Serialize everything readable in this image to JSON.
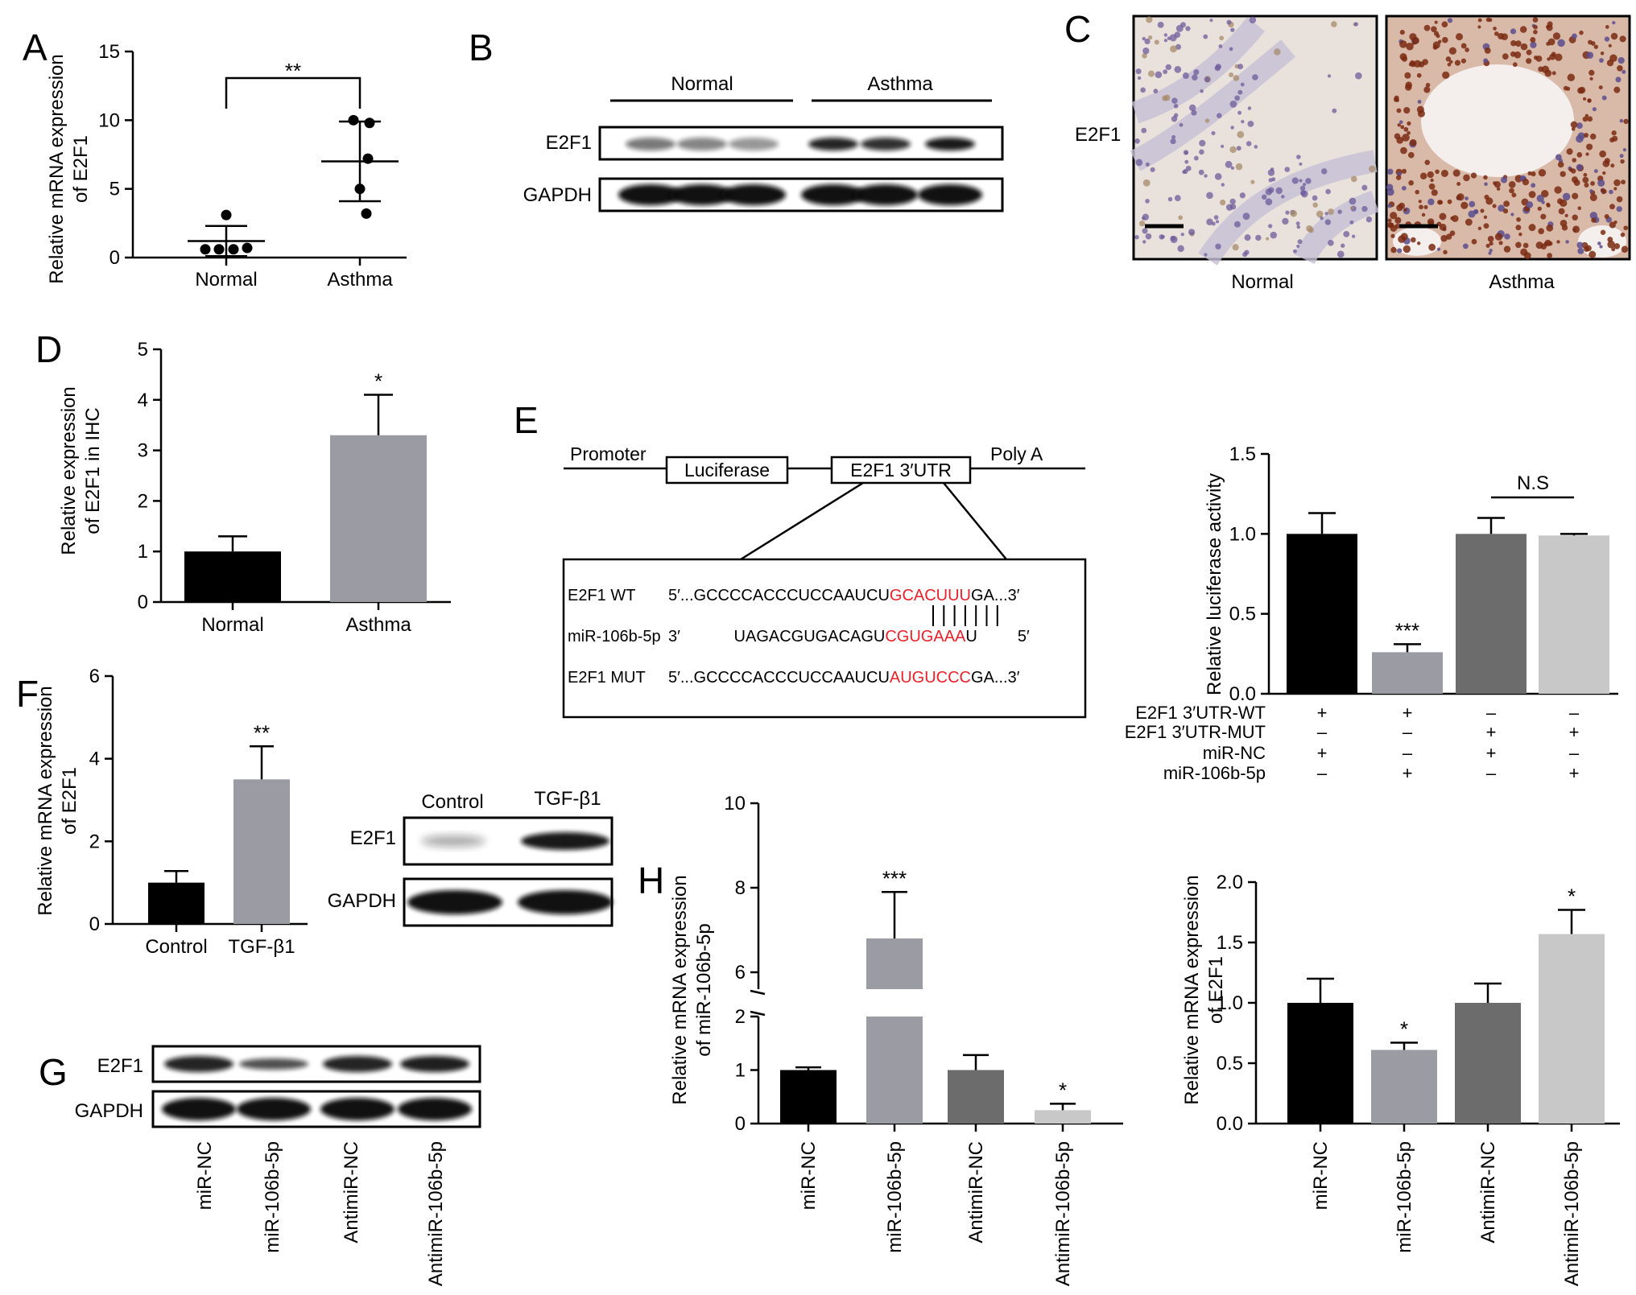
{
  "panels": {
    "A": "A",
    "B": "B",
    "C": "C",
    "D": "D",
    "E": "E",
    "F": "F",
    "G": "G",
    "H": "H"
  },
  "colors": {
    "black_bar": "#000000",
    "gray_bar": "#9a9ba3",
    "darkgray_bar": "#6c6c6c",
    "lightgray_bar": "#c8c8c8",
    "red_seq": "#e8212a"
  },
  "chart_data": [
    {
      "id": "A",
      "type": "scatter",
      "ylabel": "Relative mRNA expression\nof E2F1",
      "categories": [
        "Normal",
        "Asthma"
      ],
      "ylim": [
        0,
        15
      ],
      "yticks": [
        0,
        5,
        10,
        15
      ],
      "points": [
        {
          "group": "Normal",
          "values": [
            0.6,
            0.6,
            0.6,
            0.7,
            3.1
          ]
        },
        {
          "group": "Asthma",
          "values": [
            10.0,
            9.8,
            7.2,
            5.0,
            3.2
          ]
        }
      ],
      "mean": [
        1.2,
        7.0
      ],
      "sd": [
        1.1,
        2.9
      ],
      "annotation": "**"
    },
    {
      "id": "D",
      "type": "bar",
      "ylabel": "Relative expression\nof E2F1 in IHC",
      "categories": [
        "Normal",
        "Asthma"
      ],
      "values": [
        1.0,
        3.3
      ],
      "errors": [
        0.3,
        0.8
      ],
      "ylim": [
        0,
        5
      ],
      "yticks": [
        0,
        1,
        2,
        3,
        4,
        5
      ],
      "annotations": [
        "",
        "*"
      ]
    },
    {
      "id": "E",
      "type": "bar",
      "ylabel": "Relative luciferase activity",
      "values": [
        1.0,
        0.26,
        1.0,
        0.99
      ],
      "errors": [
        0.13,
        0.05,
        0.1,
        0.01
      ],
      "ylim": [
        0,
        1.5
      ],
      "yticks": [
        "0.0",
        "0.5",
        "1.0",
        "1.5"
      ],
      "annotations": [
        "",
        "***",
        "",
        ""
      ],
      "bracket_label": "N.S",
      "condition_rows": [
        {
          "label": "E2F1 3′UTR-WT",
          "marks": [
            "+",
            "+",
            "–",
            "–"
          ]
        },
        {
          "label": "E2F1 3′UTR-MUT",
          "marks": [
            "–",
            "–",
            "+",
            "+"
          ]
        },
        {
          "label": "miR-NC",
          "marks": [
            "+",
            "–",
            "+",
            "–"
          ]
        },
        {
          "label": "miR-106b-5p",
          "marks": [
            "–",
            "+",
            "–",
            "+"
          ]
        }
      ]
    },
    {
      "id": "F",
      "type": "bar",
      "ylabel": "Relative mRNA expression\nof E2F1",
      "categories": [
        "Control",
        "TGF-β1"
      ],
      "values": [
        1.0,
        3.5
      ],
      "errors": [
        0.28,
        0.8
      ],
      "ylim": [
        0,
        6
      ],
      "yticks": [
        0,
        2,
        4,
        6
      ],
      "annotations": [
        "",
        "**"
      ]
    },
    {
      "id": "H1",
      "type": "bar",
      "ylabel": "Relative mRNA expression\nof miR-106b-5p",
      "categories": [
        "miR-NC",
        "miR-106b-5p",
        "AntimiR-NC",
        "AntimiR-106b-5p"
      ],
      "values": [
        1.0,
        6.8,
        1.0,
        0.25
      ],
      "errors": [
        0.05,
        1.1,
        0.28,
        0.12
      ],
      "yticks_lower": [
        0,
        1,
        2
      ],
      "yticks_upper": [
        6,
        8,
        10
      ],
      "axis_break": [
        2,
        5
      ],
      "annotations": [
        "",
        "***",
        "",
        "*"
      ]
    },
    {
      "id": "H2",
      "type": "bar",
      "ylabel": "Relative mRNA expression\nof E2F1",
      "categories": [
        "miR-NC",
        "miR-106b-5p",
        "AntimiR-NC",
        "AntimiR-106b-5p"
      ],
      "values": [
        1.0,
        0.61,
        1.0,
        1.57
      ],
      "errors": [
        0.2,
        0.06,
        0.16,
        0.2
      ],
      "ylim": [
        0,
        2.0
      ],
      "yticks": [
        "0.0",
        "0.5",
        "1.0",
        "1.5",
        "2.0"
      ],
      "annotations": [
        "",
        "*",
        "",
        "*"
      ]
    }
  ],
  "blot_B": {
    "group_labels": [
      "Normal",
      "Asthma"
    ],
    "row_labels": [
      "E2F1",
      "GAPDH"
    ]
  },
  "ihc_C": {
    "row_label": "E2F1",
    "image_labels": [
      "Normal",
      "Asthma"
    ]
  },
  "diagram_E": {
    "promoter": "Promoter",
    "luciferase": "Luciferase",
    "utr": "E2F1 3′UTR",
    "polya": "Poly A",
    "seq_rows": [
      {
        "label": "E2F1 WT",
        "prefix": "5′...GCCCCACCCUCCAAUCU",
        "highlight": "GCACUUU",
        "suffix": "GA...3′"
      },
      {
        "label": "miR-106b-5p",
        "prefix": "3′            UAGACGUGACAGU",
        "highlight": "CGUGAAA",
        "suffix": "U         5′"
      },
      {
        "label": "E2F1 MUT",
        "prefix": "5′...GCCCCACCCUCCAAUCU",
        "highlight": "AUGUCCC",
        "suffix": "GA...3′"
      }
    ]
  },
  "blot_F": {
    "col_labels": [
      "Control",
      "TGF-β1"
    ],
    "row_labels": [
      "E2F1",
      "GAPDH"
    ]
  },
  "blot_G": {
    "row_labels": [
      "E2F1",
      "GAPDH"
    ],
    "lane_labels": [
      "miR-NC",
      "miR-106b-5p",
      "AntimiR-NC",
      "AntimiR-106b-5p"
    ]
  }
}
